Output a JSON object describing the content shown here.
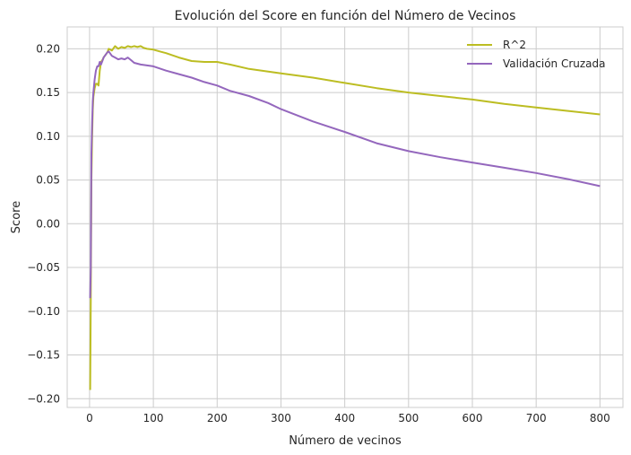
{
  "chart_data": {
    "type": "line",
    "title": "Evolución del Score en función del Número de Vecinos",
    "xlabel": "Número de vecinos",
    "ylabel": "Score",
    "xlim": [
      -35,
      836
    ],
    "ylim": [
      -0.21,
      0.225
    ],
    "xticks": [
      0,
      100,
      200,
      300,
      400,
      500,
      600,
      700,
      800
    ],
    "xtick_labels": [
      "0",
      "100",
      "200",
      "300",
      "400",
      "500",
      "600",
      "700",
      "800"
    ],
    "yticks": [
      -0.2,
      -0.15,
      -0.1,
      -0.05,
      0.0,
      0.05,
      0.1,
      0.15,
      0.2
    ],
    "ytick_labels": [
      "−0.20",
      "−0.15",
      "−0.10",
      "−0.05",
      "0.00",
      "0.05",
      "0.10",
      "0.15",
      "0.20"
    ],
    "grid": true,
    "legend_position": "top-right",
    "series": [
      {
        "name": "R^2",
        "color": "#bcbd22",
        "x": [
          1,
          2,
          3,
          4,
          5,
          6,
          8,
          10,
          12,
          14,
          16,
          18,
          20,
          22,
          25,
          28,
          30,
          35,
          40,
          45,
          50,
          55,
          60,
          65,
          70,
          75,
          80,
          85,
          90,
          100,
          110,
          120,
          140,
          160,
          180,
          200,
          220,
          250,
          300,
          350,
          400,
          450,
          500,
          550,
          600,
          650,
          700,
          750,
          800
        ],
        "y": [
          -0.19,
          -0.085,
          0.05,
          0.1,
          0.13,
          0.145,
          0.155,
          0.16,
          0.16,
          0.158,
          0.175,
          0.185,
          0.187,
          0.19,
          0.193,
          0.196,
          0.2,
          0.198,
          0.203,
          0.2,
          0.202,
          0.201,
          0.203,
          0.202,
          0.203,
          0.202,
          0.203,
          0.201,
          0.2,
          0.199,
          0.197,
          0.195,
          0.19,
          0.186,
          0.185,
          0.185,
          0.182,
          0.177,
          0.172,
          0.167,
          0.161,
          0.155,
          0.15,
          0.146,
          0.142,
          0.137,
          0.133,
          0.129,
          0.125
        ]
      },
      {
        "name": "Validación Cruzada",
        "color": "#9467bd",
        "x": [
          1,
          2,
          3,
          4,
          5,
          6,
          8,
          10,
          12,
          14,
          16,
          18,
          20,
          22,
          25,
          28,
          30,
          35,
          40,
          45,
          50,
          55,
          60,
          65,
          70,
          80,
          90,
          100,
          120,
          140,
          160,
          180,
          200,
          220,
          250,
          280,
          300,
          350,
          400,
          450,
          500,
          550,
          600,
          650,
          700,
          750,
          800
        ],
        "y": [
          -0.085,
          -0.05,
          0.08,
          0.115,
          0.14,
          0.15,
          0.165,
          0.175,
          0.18,
          0.18,
          0.185,
          0.182,
          0.186,
          0.19,
          0.193,
          0.196,
          0.197,
          0.192,
          0.19,
          0.188,
          0.189,
          0.188,
          0.19,
          0.187,
          0.184,
          0.182,
          0.181,
          0.18,
          0.175,
          0.171,
          0.167,
          0.162,
          0.158,
          0.152,
          0.146,
          0.138,
          0.131,
          0.117,
          0.105,
          0.092,
          0.083,
          0.076,
          0.07,
          0.064,
          0.058,
          0.051,
          0.043
        ]
      }
    ]
  }
}
